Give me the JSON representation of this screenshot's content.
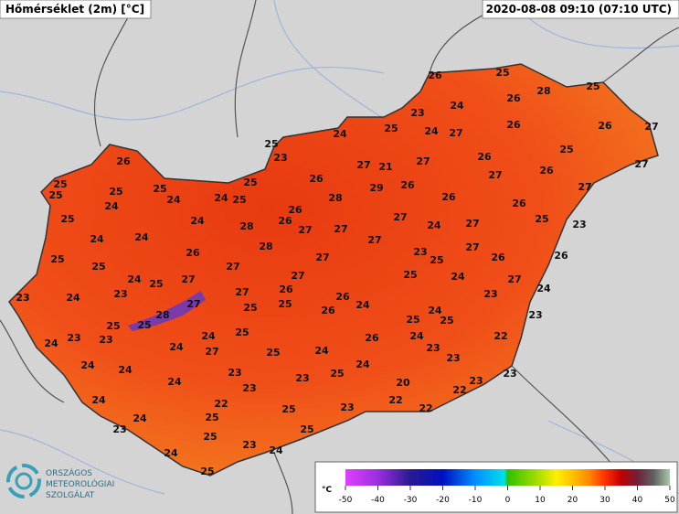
{
  "header": {
    "title": "Hőmérséklet (2m) [°C]",
    "timestamp": "2020-08-08 09:10 (07:10 UTC)"
  },
  "logo": {
    "lines": [
      "ORSZÁGOS",
      "METEOROLÓGIAI",
      "SZOLGÁLAT"
    ]
  },
  "colorbar": {
    "label": "°C",
    "lim": [
      -50,
      50
    ],
    "ticks": [
      -50,
      -40,
      -30,
      -20,
      -10,
      0,
      10,
      20,
      30,
      40,
      50
    ],
    "stops": [
      {
        "value": -50,
        "color": "#e040ff"
      },
      {
        "value": -40,
        "color": "#9a2ee0"
      },
      {
        "value": -30,
        "color": "#2a1a90"
      },
      {
        "value": -20,
        "color": "#0010c0"
      },
      {
        "value": -10,
        "color": "#0090ff"
      },
      {
        "value": -1,
        "color": "#00e0e8"
      },
      {
        "value": 0,
        "color": "#30c000"
      },
      {
        "value": 10,
        "color": "#b0e000"
      },
      {
        "value": 15,
        "color": "#fff000"
      },
      {
        "value": 20,
        "color": "#ffc000"
      },
      {
        "value": 25,
        "color": "#ff8a00"
      },
      {
        "value": 30,
        "color": "#ff3000"
      },
      {
        "value": 35,
        "color": "#c00000"
      },
      {
        "value": 40,
        "color": "#70203a"
      },
      {
        "value": 45,
        "color": "#606060"
      },
      {
        "value": 50,
        "color": "#a8c8a8"
      }
    ]
  },
  "stations": [
    26,
    25,
    28,
    25,
    26,
    24,
    23,
    25,
    24,
    24,
    27,
    26,
    26,
    27,
    25,
    23,
    26,
    27,
    21,
    27,
    26,
    25,
    27,
    26,
    27,
    25,
    25,
    25,
    25,
    24,
    24,
    25,
    25,
    26,
    26,
    28,
    29,
    26,
    26,
    26,
    27,
    24,
    25,
    24,
    28,
    26,
    27,
    27,
    27,
    24,
    27,
    25,
    23,
    24,
    24,
    26,
    28,
    27,
    23,
    27,
    26,
    26,
    25,
    25,
    27,
    27,
    25,
    24,
    25,
    27,
    27,
    25,
    27,
    24,
    23,
    24,
    23,
    27,
    26,
    26,
    24,
    23,
    27,
    25,
    25,
    26,
    24,
    24,
    23,
    28,
    25,
    25,
    24,
    25,
    25,
    25,
    23,
    23,
    24,
    24,
    25,
    24,
    26,
    24,
    23,
    22,
    24,
    24,
    27,
    24,
    23,
    23,
    23,
    25,
    23,
    24,
    23,
    20,
    23,
    22,
    24,
    22,
    25,
    23,
    22,
    22,
    24,
    25,
    23,
    25,
    25,
    24,
    23,
    24,
    25
  ]
}
